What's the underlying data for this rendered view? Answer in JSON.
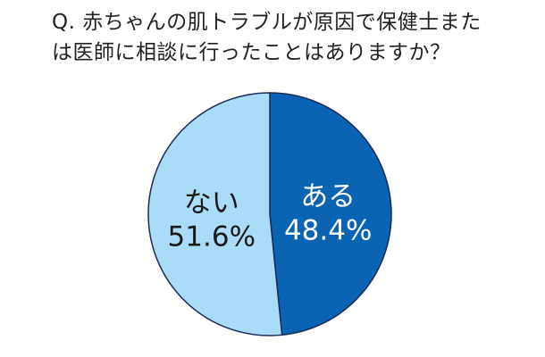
{
  "title": {
    "line1": "Q. 赤ちゃんの肌トラブルが原因で保健士また",
    "line2": "は医師に相談に行ったことはありますか？"
  },
  "chart_data": {
    "type": "pie",
    "title": "Q. 赤ちゃんの肌トラブルが原因で保健士または医師に相談に行ったことはありますか？",
    "slices": [
      {
        "label": "ある",
        "value": 48.4,
        "value_label": "48.4%",
        "color": "#0b63b3",
        "text_color": "#ffffff"
      },
      {
        "label": "ない",
        "value": 51.6,
        "value_label": "51.6%",
        "color": "#a9dcf7",
        "text_color": "#1a1a1a"
      }
    ],
    "start": "12 o'clock",
    "direction": "clockwise",
    "outline_color": "#1a2a5a"
  }
}
